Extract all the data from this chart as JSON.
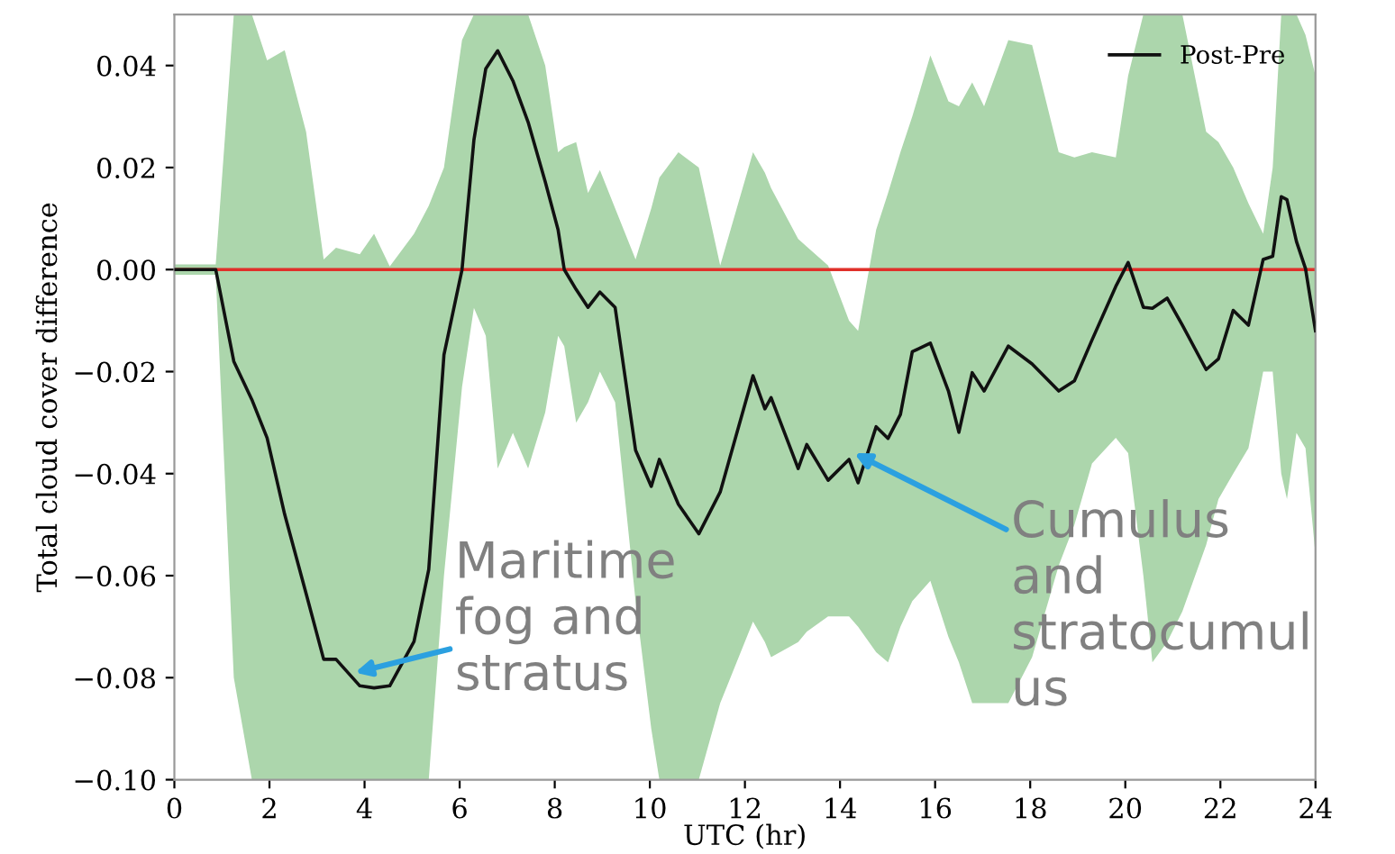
{
  "chart_data": {
    "type": "line",
    "xlabel": "UTC (hr)",
    "ylabel": "Total cloud cover difference",
    "xlim": [
      0,
      24
    ],
    "xticks": [
      0,
      2,
      4,
      6,
      8,
      10,
      12,
      14,
      16,
      18,
      20,
      22,
      24
    ],
    "ylim": [
      -0.1,
      0.05
    ],
    "yticks": [
      {
        "value": -0.1,
        "label": "−0.10"
      },
      {
        "value": -0.08,
        "label": "−0.08"
      },
      {
        "value": -0.06,
        "label": "−0.06"
      },
      {
        "value": -0.04,
        "label": "−0.04"
      },
      {
        "value": -0.02,
        "label": "−0.02"
      },
      {
        "value": 0,
        "label": "0.00"
      },
      {
        "value": 0.02,
        "label": "0.02"
      },
      {
        "value": 0.04,
        "label": "0.04"
      }
    ],
    "legend": "top right",
    "grid": false,
    "ref_lines": [
      {
        "axis": "y",
        "value": 0,
        "color": "#e0302a"
      }
    ],
    "series": [
      {
        "name": "Post-Pre",
        "color": "#111111",
        "x": [
          0,
          0.87,
          1.25,
          1.63,
          1.95,
          2.32,
          2.77,
          3.14,
          3.4,
          3.9,
          4.2,
          4.53,
          5.04,
          5.35,
          5.67,
          6.05,
          6.3,
          6.55,
          6.8,
          7.12,
          7.44,
          7.8,
          8.07,
          8.2,
          8.45,
          8.7,
          8.95,
          9.27,
          9.7,
          10.03,
          10.2,
          10.6,
          11.03,
          11.48,
          12.17,
          12.42,
          12.55,
          13.12,
          13.3,
          13.75,
          14.19,
          14.38,
          14.76,
          15.01,
          15.27,
          15.52,
          15.9,
          16.28,
          16.5,
          16.78,
          17.03,
          17.54,
          18.04,
          18.6,
          18.93,
          19.3,
          19.8,
          20.06,
          20.38,
          20.57,
          20.88,
          21.2,
          21.7,
          21.96,
          22.27,
          22.59,
          22.9,
          23.1,
          23.28,
          23.4,
          23.6,
          23.79,
          24
        ],
        "values": [
          0,
          0,
          -0.018,
          -0.0255,
          -0.033,
          -0.048,
          -0.0635,
          -0.0764,
          -0.0764,
          -0.0816,
          -0.082,
          -0.0816,
          -0.0729,
          -0.0588,
          -0.0167,
          0,
          0.0254,
          0.0394,
          0.0429,
          0.037,
          0.0289,
          0.0172,
          0.0078,
          0,
          -0.0039,
          -0.0074,
          -0.0044,
          -0.0074,
          -0.0354,
          -0.0425,
          -0.0372,
          -0.046,
          -0.0518,
          -0.0436,
          -0.0208,
          -0.0273,
          -0.0251,
          -0.039,
          -0.0343,
          -0.0413,
          -0.0372,
          -0.0418,
          -0.0308,
          -0.0331,
          -0.0284,
          -0.0161,
          -0.0144,
          -0.0238,
          -0.0319,
          -0.0202,
          -0.0238,
          -0.015,
          -0.0185,
          -0.0238,
          -0.0218,
          -0.0138,
          -0.0033,
          0.0014,
          -0.0074,
          -0.0076,
          -0.0056,
          -0.0109,
          -0.0196,
          -0.0175,
          -0.008,
          -0.0109,
          0.002,
          0.0026,
          0.0143,
          0.0137,
          0.0055,
          0.0002,
          -0.012
        ],
        "upper": [
          0.001,
          0.001,
          0.05,
          0.05,
          0.041,
          0.043,
          0.027,
          0.002,
          0.0043,
          0.003,
          0.007,
          0.0006,
          0.007,
          0.0125,
          0.02,
          0.045,
          0.05,
          0.05,
          0.05,
          0.05,
          0.05,
          0.04,
          0.023,
          0.024,
          0.025,
          0.015,
          0.0195,
          0.012,
          0.002,
          0.012,
          0.018,
          0.023,
          0.02,
          0.0008,
          0.023,
          0.019,
          0.016,
          0.006,
          0.0045,
          0.0008,
          -0.01,
          -0.012,
          0.0078,
          0.015,
          0.023,
          0.03,
          0.042,
          0.033,
          0.032,
          0.0367,
          0.032,
          0.045,
          0.044,
          0.023,
          0.022,
          0.023,
          0.022,
          0.038,
          0.05,
          0.05,
          0.05,
          0.05,
          0.027,
          0.025,
          0.02,
          0.013,
          0.007,
          0.02,
          0.05,
          0.05,
          0.05,
          0.046,
          0.038
        ],
        "lower": [
          -0.001,
          -0.001,
          -0.08,
          -0.1,
          -0.1,
          -0.1,
          -0.1,
          -0.1,
          -0.1,
          -0.1,
          -0.1,
          -0.1,
          -0.1,
          -0.1,
          -0.06,
          -0.023,
          -0.0075,
          -0.013,
          -0.039,
          -0.032,
          -0.039,
          -0.028,
          -0.013,
          -0.015,
          -0.03,
          -0.026,
          -0.02,
          -0.026,
          -0.065,
          -0.09,
          -0.1,
          -0.1,
          -0.1,
          -0.085,
          -0.069,
          -0.073,
          -0.076,
          -0.073,
          -0.071,
          -0.068,
          -0.068,
          -0.07,
          -0.075,
          -0.077,
          -0.07,
          -0.065,
          -0.061,
          -0.072,
          -0.077,
          -0.085,
          -0.085,
          -0.085,
          -0.076,
          -0.058,
          -0.05,
          -0.038,
          -0.033,
          -0.036,
          -0.06,
          -0.077,
          -0.073,
          -0.067,
          -0.054,
          -0.045,
          -0.04,
          -0.035,
          -0.02,
          -0.02,
          -0.04,
          -0.045,
          -0.032,
          -0.035,
          -0.056
        ]
      }
    ],
    "annotations": [
      {
        "text": "Maritime\nfog and\nstratus",
        "x": 3.8,
        "y": -0.079
      },
      {
        "text": "Cumulus\nand\nstratocumul\nus",
        "x": 14.3,
        "y": -0.036
      }
    ]
  }
}
